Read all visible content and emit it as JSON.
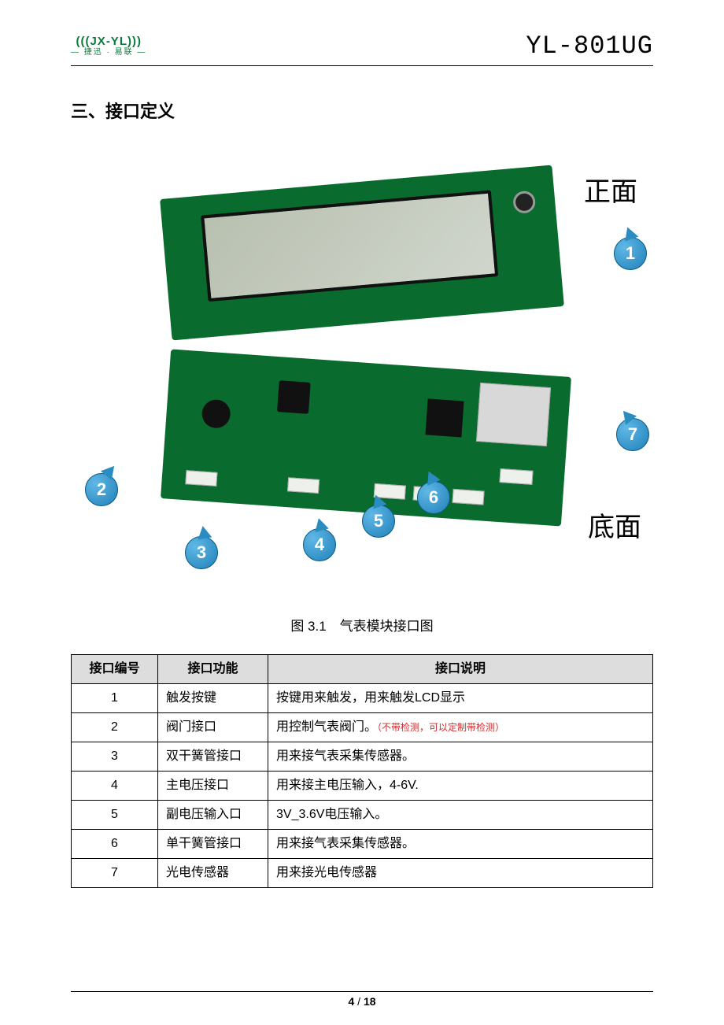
{
  "header": {
    "logo_top": "(((JX-YL)))",
    "logo_sub": "— 捷迅 · 易联 —",
    "model": "YL-801UG"
  },
  "section_title": "三、接口定义",
  "figure": {
    "label_front": "正面",
    "label_back": "底面",
    "callouts": [
      "1",
      "2",
      "3",
      "4",
      "5",
      "6",
      "7"
    ],
    "caption": "图 3.1 气表模块接口图"
  },
  "table": {
    "headers": [
      "接口编号",
      "接口功能",
      "接口说明"
    ],
    "rows": [
      {
        "num": "1",
        "func": "触发按键",
        "desc": "按键用来触发，用来触发LCD显示",
        "note": ""
      },
      {
        "num": "2",
        "func": "阀门接口",
        "desc": "用控制气表阀门。",
        "note": "（不带检测，可以定制带检测）"
      },
      {
        "num": "3",
        "func": "双干簧管接口",
        "desc": "用来接气表采集传感器。",
        "note": ""
      },
      {
        "num": "4",
        "func": "主电压接口",
        "desc": "用来接主电压输入，4-6V.",
        "note": ""
      },
      {
        "num": "5",
        "func": "副电压输入口",
        "desc": "3V_3.6V电压输入。",
        "note": ""
      },
      {
        "num": "6",
        "func": "单干簧管接口",
        "desc": "用来接气表采集传感器。",
        "note": ""
      },
      {
        "num": "7",
        "func": "光电传感器",
        "desc": "用来接光电传感器",
        "note": ""
      }
    ]
  },
  "footer": {
    "page_current": "4",
    "page_sep": " / ",
    "page_total": "18"
  },
  "colors": {
    "pcb": "#0a6b2e",
    "callout": "#2a8cc0",
    "grid": "#000000",
    "header_bg": "#dddddd",
    "note": "#d02a2a",
    "logo": "#0a7a3a"
  }
}
